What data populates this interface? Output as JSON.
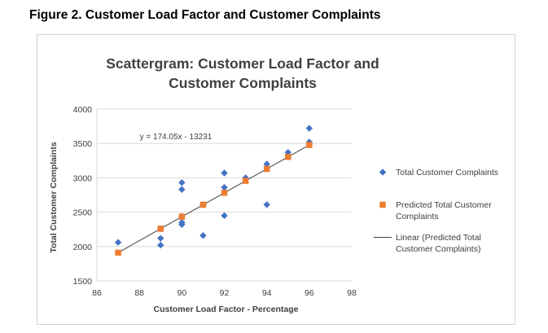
{
  "figure_caption": "Figure 2. Customer Load Factor and Customer Complaints",
  "chart_data": {
    "type": "scatter",
    "title_lines": [
      "Scattergram: Customer Load Factor and",
      "Customer Complaints"
    ],
    "xlabel": "Customer Load Factor - Percentage",
    "ylabel": "Total Customer Complaints",
    "xlim": [
      86,
      98
    ],
    "ylim": [
      1500,
      4000
    ],
    "x_ticks": [
      "86",
      "88",
      "90",
      "92",
      "94",
      "96",
      "98"
    ],
    "y_ticks": [
      "1500",
      "2000",
      "2500",
      "3000",
      "3500",
      "4000"
    ],
    "grid": "horizontal",
    "legend_position": "right",
    "annotation": "y = 174.05x - 13231",
    "series": [
      {
        "name": "Total Customer Complaints",
        "marker": "diamond",
        "color": "#4472c4",
        "points": [
          [
            87,
            2060
          ],
          [
            89,
            2020
          ],
          [
            89,
            2120
          ],
          [
            89,
            2260
          ],
          [
            90,
            2320
          ],
          [
            90,
            2350
          ],
          [
            90,
            2830
          ],
          [
            90,
            2930
          ],
          [
            90,
            2440
          ],
          [
            91,
            2160
          ],
          [
            91,
            2610
          ],
          [
            92,
            2450
          ],
          [
            92,
            2860
          ],
          [
            92,
            3070
          ],
          [
            93,
            3000
          ],
          [
            94,
            2610
          ],
          [
            94,
            3200
          ],
          [
            95,
            3370
          ],
          [
            96,
            3520
          ],
          [
            96,
            3720
          ]
        ]
      },
      {
        "name": "Predicted Total Customer Complaints",
        "marker": "square",
        "color": "#ed7d31",
        "points": [
          [
            87,
            1911
          ],
          [
            89,
            2259
          ],
          [
            90,
            2434
          ],
          [
            91,
            2608
          ],
          [
            92,
            2782
          ],
          [
            93,
            2956
          ],
          [
            94,
            3130
          ],
          [
            95,
            3304
          ],
          [
            96,
            3478
          ]
        ]
      }
    ],
    "trendline": {
      "name": "Linear (Predicted Total Customer Complaints)",
      "color": "#404040",
      "slope": 174.05,
      "intercept": -13231,
      "x_range": [
        87,
        96
      ]
    },
    "legend": [
      {
        "lines": [
          "Total Customer Complaints"
        ],
        "marker": "diamond"
      },
      {
        "lines": [
          "Predicted Total Customer",
          "Complaints"
        ],
        "marker": "square"
      },
      {
        "lines": [
          "Linear (Predicted Total",
          "Customer Complaints)"
        ],
        "marker": "line"
      }
    ]
  }
}
